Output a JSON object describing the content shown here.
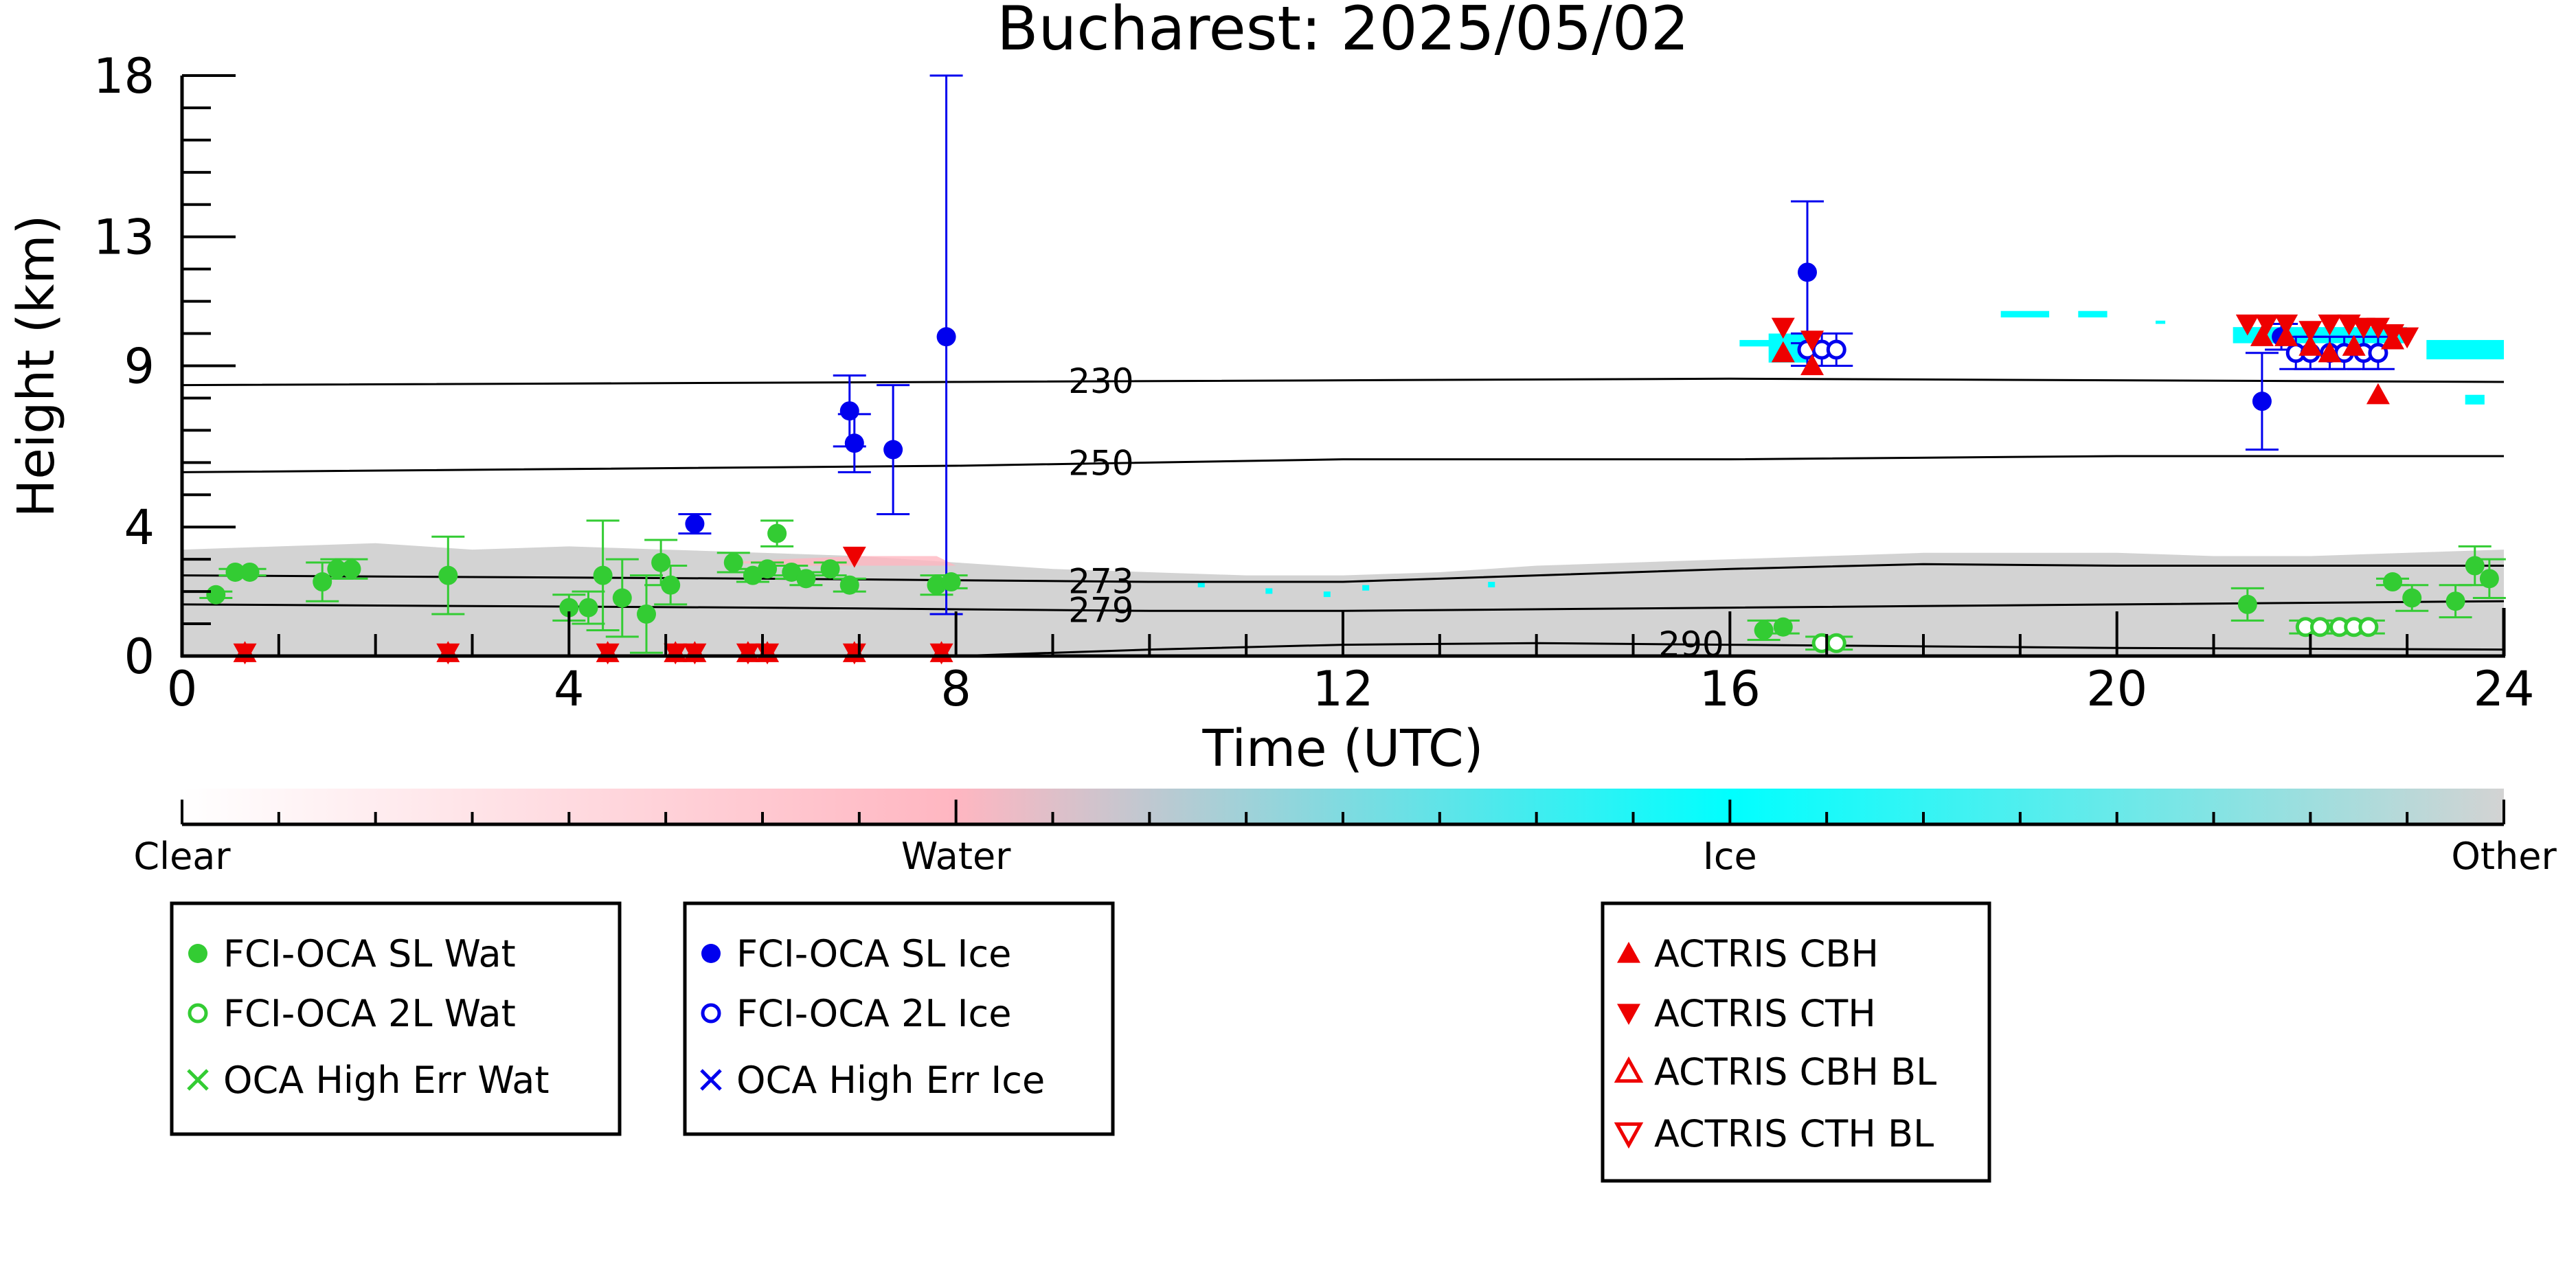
{
  "chart_data": {
    "type": "scatter",
    "title": "Bucharest: 2025/05/02",
    "xlabel": "Time (UTC)",
    "ylabel": "Height (km)",
    "xlim": [
      0,
      24
    ],
    "ylim": [
      0,
      18
    ],
    "x_ticks": [
      0,
      4,
      8,
      12,
      16,
      20,
      24
    ],
    "y_ticks": [
      0,
      4,
      9,
      13,
      18
    ],
    "background_colors": {
      "clear": "#ffffff",
      "water": "#ffb6c1",
      "ice": "#00ffff",
      "other": "#d3d3d3"
    },
    "colorbar": {
      "labels": [
        "Clear",
        "Water",
        "Ice",
        "Other"
      ]
    },
    "contours": [
      {
        "label": "230",
        "x": [
          0,
          8,
          16,
          20,
          24
        ],
        "y": [
          8.4,
          8.5,
          8.6,
          8.55,
          8.5
        ],
        "label_x": 9.5
      },
      {
        "label": "250",
        "x": [
          0,
          8,
          12,
          16,
          20,
          24
        ],
        "y": [
          5.7,
          5.9,
          6.1,
          6.1,
          6.2,
          6.2
        ],
        "label_x": 9.5
      },
      {
        "label": "273",
        "x": [
          0,
          6,
          10,
          12,
          16,
          18,
          20,
          24
        ],
        "y": [
          2.5,
          2.4,
          2.3,
          2.3,
          2.7,
          2.85,
          2.8,
          2.8
        ],
        "label_x": 9.5
      },
      {
        "label": "279",
        "x": [
          0,
          6,
          10,
          12,
          16,
          20,
          24
        ],
        "y": [
          1.6,
          1.5,
          1.4,
          1.4,
          1.5,
          1.6,
          1.7
        ],
        "label_x": 9.5
      },
      {
        "label": "290",
        "x": [
          8,
          10,
          12,
          14,
          16,
          20,
          24
        ],
        "y": [
          0.0,
          0.2,
          0.35,
          0.4,
          0.35,
          0.25,
          0.2
        ],
        "label_x": 15.6
      }
    ],
    "series": [
      {
        "name": "FCI-OCA SL Wat",
        "color": "#33cc33",
        "marker": "filled-circle",
        "points": [
          [
            0.35,
            1.9,
            0.1
          ],
          [
            0.55,
            2.6,
            0.1
          ],
          [
            0.7,
            2.6,
            0.1
          ],
          [
            1.45,
            2.3,
            0.6
          ],
          [
            1.6,
            2.7,
            0.3
          ],
          [
            1.75,
            2.7,
            0.3
          ],
          [
            2.75,
            2.5,
            1.2
          ],
          [
            4.0,
            1.5,
            0.4
          ],
          [
            4.2,
            1.5,
            0.5
          ],
          [
            4.35,
            2.5,
            1.7
          ],
          [
            4.55,
            1.8,
            1.2
          ],
          [
            4.8,
            1.3,
            1.2
          ],
          [
            4.95,
            2.9,
            0.7
          ],
          [
            5.05,
            2.2,
            0.6
          ],
          [
            5.7,
            2.9,
            0.3
          ],
          [
            5.9,
            2.5,
            0.2
          ],
          [
            6.05,
            2.7,
            0.2
          ],
          [
            6.15,
            3.8,
            0.4
          ],
          [
            6.3,
            2.6,
            0.2
          ],
          [
            6.45,
            2.4,
            0.2
          ],
          [
            6.7,
            2.7,
            0.2
          ],
          [
            6.9,
            2.2,
            0.2
          ],
          [
            7.8,
            2.2,
            0.3
          ],
          [
            7.95,
            2.3,
            0.2
          ],
          [
            16.35,
            0.8,
            0.3
          ],
          [
            16.55,
            0.9,
            0.2
          ],
          [
            21.35,
            1.6,
            0.5
          ],
          [
            22.85,
            2.3,
            0.1
          ],
          [
            23.05,
            1.8,
            0.4
          ],
          [
            23.5,
            1.7,
            0.5
          ],
          [
            23.7,
            2.8,
            0.6
          ],
          [
            23.85,
            2.4,
            0.6
          ]
        ]
      },
      {
        "name": "FCI-OCA 2L Wat",
        "color": "#33cc33",
        "marker": "open-circle",
        "points": [
          [
            16.95,
            0.4,
            0.2
          ],
          [
            17.1,
            0.4,
            0.2
          ],
          [
            21.95,
            0.9,
            0.2
          ],
          [
            22.1,
            0.9,
            0.2
          ],
          [
            22.3,
            0.9,
            0.2
          ],
          [
            22.45,
            0.9,
            0.2
          ],
          [
            22.6,
            0.9,
            0.2
          ]
        ]
      },
      {
        "name": "OCA High Err Wat",
        "color": "#33cc33",
        "marker": "x",
        "points": []
      },
      {
        "name": "FCI-OCA SL Ice",
        "color": "#0000ee",
        "marker": "filled-circle",
        "points": [
          [
            5.3,
            4.1,
            0.3
          ],
          [
            6.9,
            7.6,
            1.1
          ],
          [
            6.95,
            6.6,
            0.9
          ],
          [
            7.35,
            6.4,
            2.0
          ],
          [
            7.9,
            9.9,
            8.6
          ],
          [
            16.8,
            11.9,
            2.2
          ],
          [
            21.5,
            7.9,
            1.5
          ],
          [
            21.7,
            9.9,
            0.4
          ]
        ]
      },
      {
        "name": "FCI-OCA 2L Ice",
        "color": "#0000ee",
        "marker": "open-circle",
        "points": [
          [
            16.8,
            9.5,
            0.5
          ],
          [
            16.95,
            9.5,
            0.5
          ],
          [
            17.1,
            9.5,
            0.5
          ],
          [
            21.85,
            9.4,
            0.5
          ],
          [
            22.0,
            9.4,
            0.5
          ],
          [
            22.2,
            9.4,
            0.5
          ],
          [
            22.35,
            9.4,
            0.5
          ],
          [
            22.55,
            9.4,
            0.5
          ],
          [
            22.7,
            9.4,
            0.5
          ]
        ]
      },
      {
        "name": "OCA High Err Ice",
        "color": "#0000ee",
        "marker": "x",
        "points": []
      },
      {
        "name": "ACTRIS CBH",
        "color": "#ee0000",
        "marker": "filled-triangle-up",
        "points": [
          [
            0.65,
            0.1
          ],
          [
            2.75,
            0.1
          ],
          [
            4.4,
            0.1
          ],
          [
            5.1,
            0.1
          ],
          [
            5.3,
            0.1
          ],
          [
            5.85,
            0.1
          ],
          [
            6.05,
            0.1
          ],
          [
            6.95,
            0.1
          ],
          [
            7.85,
            0.1
          ],
          [
            16.55,
            9.4
          ],
          [
            16.85,
            9.0
          ],
          [
            21.5,
            9.9
          ],
          [
            21.75,
            9.9
          ],
          [
            22.0,
            9.6
          ],
          [
            22.2,
            9.4
          ],
          [
            22.45,
            9.6
          ],
          [
            22.7,
            8.1
          ],
          [
            22.85,
            9.8
          ]
        ]
      },
      {
        "name": "ACTRIS CTH",
        "color": "#ee0000",
        "marker": "filled-triangle-down",
        "points": [
          [
            0.65,
            0.1
          ],
          [
            2.75,
            0.1
          ],
          [
            4.4,
            0.1
          ],
          [
            5.1,
            0.1
          ],
          [
            5.3,
            0.1
          ],
          [
            5.85,
            0.1
          ],
          [
            6.05,
            0.1
          ],
          [
            6.95,
            0.1
          ],
          [
            7.85,
            0.1
          ],
          [
            6.95,
            3.1
          ],
          [
            16.55,
            10.2
          ],
          [
            16.85,
            9.8
          ],
          [
            21.35,
            10.3
          ],
          [
            21.55,
            10.3
          ],
          [
            21.75,
            10.3
          ],
          [
            22.0,
            10.1
          ],
          [
            22.2,
            10.3
          ],
          [
            22.4,
            10.3
          ],
          [
            22.55,
            10.2
          ],
          [
            22.7,
            10.2
          ],
          [
            22.85,
            10.0
          ],
          [
            23.0,
            9.9
          ]
        ]
      },
      {
        "name": "ACTRIS CBH BL",
        "color": "#ee0000",
        "marker": "open-triangle-up",
        "points": []
      },
      {
        "name": "ACTRIS CTH BL",
        "color": "#ee0000",
        "marker": "open-triangle-down",
        "points": []
      }
    ],
    "legend": {
      "placement": "below-chart",
      "boxes": [
        [
          "FCI-OCA SL Wat",
          "FCI-OCA 2L Wat",
          "OCA High Err Wat"
        ],
        [
          "FCI-OCA SL Ice",
          "FCI-OCA 2L Ice",
          "OCA High Err Ice"
        ],
        [
          "ACTRIS CBH",
          "ACTRIS CTH",
          "ACTRIS CBH BL",
          "ACTRIS CTH BL"
        ]
      ]
    }
  }
}
